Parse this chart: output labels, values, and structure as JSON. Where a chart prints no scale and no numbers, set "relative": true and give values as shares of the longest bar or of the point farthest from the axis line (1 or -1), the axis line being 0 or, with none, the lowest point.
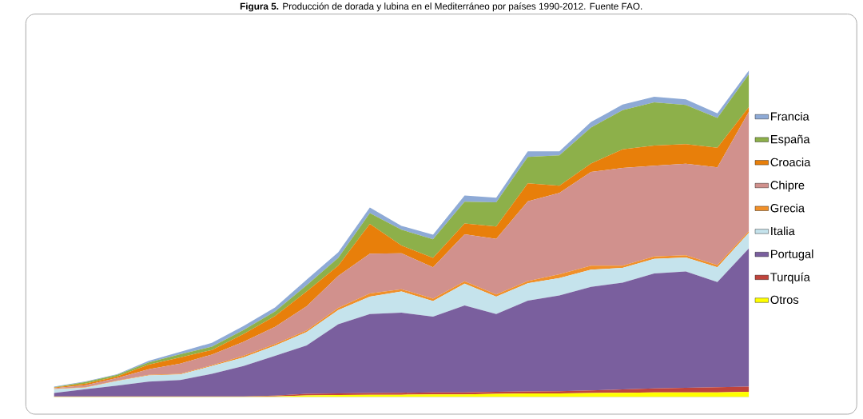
{
  "chart_data": {
    "type": "area",
    "stacked": true,
    "relative": true,
    "legend": "right",
    "title": "**Figura 5.** Producción de dorada y lubina en el Mediterráneo por países 1990-2012. Fuente FAO.",
    "categories": [
      null,
      null,
      null,
      null,
      null,
      null,
      null,
      null,
      null,
      null,
      null,
      null,
      null,
      null,
      null,
      null,
      null,
      null,
      null,
      null,
      null,
      null,
      null
    ],
    "series": [
      {
        "name": "Otros",
        "color": "#ffff00",
        "values": [
          0.001,
          0.001,
          0.001,
          0.001,
          0.001,
          0.001,
          0.001,
          0.002,
          0.005,
          0.006,
          0.007,
          0.007,
          0.008,
          0.008,
          0.01,
          0.011,
          0.011,
          0.012,
          0.013,
          0.014,
          0.014,
          0.014,
          0.016
        ]
      },
      {
        "name": "Turquía",
        "color": "#c0443c",
        "values": [
          0.001,
          0.001,
          0.001,
          0.001,
          0.001,
          0.001,
          0.001,
          0.002,
          0.005,
          0.005,
          0.005,
          0.006,
          0.006,
          0.006,
          0.006,
          0.006,
          0.007,
          0.008,
          0.01,
          0.012,
          0.014,
          0.016,
          0.016
        ]
      },
      {
        "name": "Portugal",
        "color": "#7a5f9e",
        "values": [
          0.01,
          0.022,
          0.033,
          0.045,
          0.05,
          0.069,
          0.093,
          0.122,
          0.148,
          0.212,
          0.242,
          0.245,
          0.232,
          0.266,
          0.238,
          0.278,
          0.293,
          0.317,
          0.327,
          0.352,
          0.356,
          0.322,
          0.423
        ]
      },
      {
        "name": "Italia",
        "color": "#c5e3ec",
        "values": [
          0.012,
          0.005,
          0.014,
          0.019,
          0.017,
          0.024,
          0.026,
          0.031,
          0.041,
          0.043,
          0.053,
          0.065,
          0.048,
          0.067,
          0.053,
          0.053,
          0.053,
          0.053,
          0.045,
          0.045,
          0.043,
          0.045,
          0.048
        ]
      },
      {
        "name": "Grecia",
        "color": "#f0902a",
        "values": [
          0.001,
          0.001,
          0.001,
          0.002,
          0.002,
          0.002,
          0.005,
          0.005,
          0.005,
          0.007,
          0.01,
          0.007,
          0.007,
          0.007,
          0.007,
          0.007,
          0.012,
          0.012,
          0.007,
          0.007,
          0.007,
          0.007,
          0.005
        ]
      },
      {
        "name": "Chipre",
        "color": "#d1918d",
        "values": [
          0.002,
          0.006,
          0.008,
          0.017,
          0.031,
          0.033,
          0.043,
          0.053,
          0.074,
          0.098,
          0.122,
          0.11,
          0.096,
          0.144,
          0.17,
          0.244,
          0.249,
          0.287,
          0.299,
          0.278,
          0.28,
          0.299,
          0.366
        ]
      },
      {
        "name": "Croacia",
        "color": "#e87f0a",
        "values": [
          0.002,
          0.005,
          0.005,
          0.014,
          0.019,
          0.014,
          0.024,
          0.033,
          0.045,
          0.031,
          0.091,
          0.024,
          0.029,
          0.033,
          0.038,
          0.055,
          0.022,
          0.026,
          0.057,
          0.062,
          0.06,
          0.06,
          0.014
        ]
      },
      {
        "name": "España",
        "color": "#8db04a",
        "values": [
          0.001,
          0.005,
          0.005,
          0.007,
          0.01,
          0.01,
          0.012,
          0.014,
          0.019,
          0.024,
          0.033,
          0.048,
          0.057,
          0.067,
          0.074,
          0.081,
          0.093,
          0.11,
          0.12,
          0.132,
          0.12,
          0.091,
          0.1
        ]
      },
      {
        "name": "Francia",
        "color": "#8eaad6",
        "values": [
          0.002,
          0.002,
          0.002,
          0.005,
          0.007,
          0.012,
          0.012,
          0.012,
          0.017,
          0.017,
          0.017,
          0.012,
          0.014,
          0.019,
          0.014,
          0.017,
          0.012,
          0.017,
          0.017,
          0.017,
          0.017,
          0.014,
          0.012
        ]
      }
    ]
  }
}
